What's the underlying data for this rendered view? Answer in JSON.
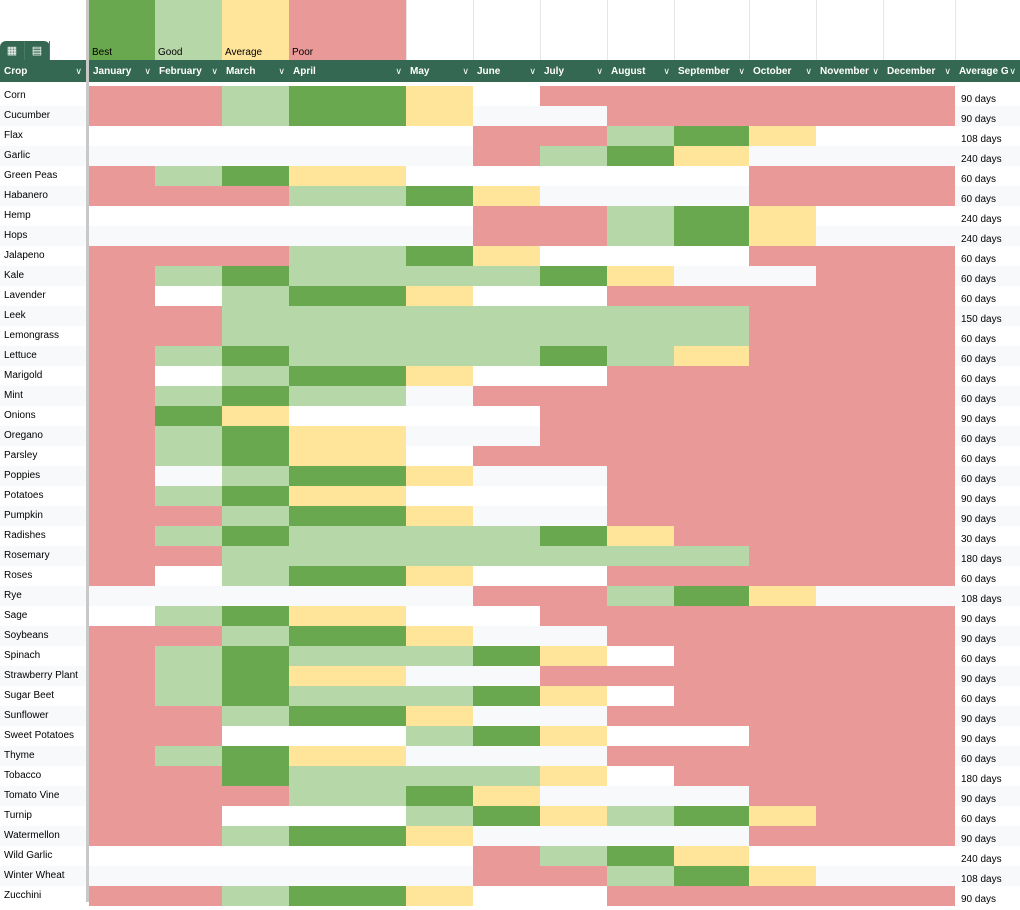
{
  "legend": [
    {
      "label": "Best",
      "color": "#6aa84f"
    },
    {
      "label": "Good",
      "color": "#b6d7a8"
    },
    {
      "label": "Average",
      "color": "#ffe599"
    },
    {
      "label": "Poor",
      "color": "#ea9999"
    }
  ],
  "toolbar": {
    "icons": [
      "table-view-icon",
      "calculator-icon"
    ]
  },
  "columns": [
    "Crop",
    "January",
    "February",
    "March",
    "April",
    "May",
    "June",
    "July",
    "August",
    "September",
    "October",
    "November",
    "December",
    "Average G"
  ],
  "rating_colors": {
    "B": "#6aa84f",
    "G": "#b6d7a8",
    "A": "#ffe599",
    "P": "#ea9999"
  },
  "rating_key": {
    "B": "Best",
    "G": "Good",
    "A": "Average",
    "P": "Poor",
    "_": "None"
  },
  "rows": [
    {
      "crop": "Corn",
      "months": "PPGBA_PPPPPP",
      "avg": "90 days"
    },
    {
      "crop": "Cucumber",
      "months": "PPGBA__PPPPP",
      "avg": "90 days"
    },
    {
      "crop": "Flax",
      "months": "_____PPGBA__",
      "avg": "108 days"
    },
    {
      "crop": "Garlic",
      "months": "_____PGBA___",
      "avg": "240 days"
    },
    {
      "crop": "Green Peas",
      "months": "PGBA_____PPP",
      "avg": "60 days"
    },
    {
      "crop": "Habanero",
      "months": "PPPGBA___PPP",
      "avg": "60 days"
    },
    {
      "crop": "Hemp",
      "months": "_____PPGBA__",
      "avg": "240 days"
    },
    {
      "crop": "Hops",
      "months": "_____PPGBA__",
      "avg": "240 days"
    },
    {
      "crop": "Jalapeno",
      "months": "PPPGBA___PPP",
      "avg": "60 days"
    },
    {
      "crop": "Kale",
      "months": "PGBGGGBA__PP",
      "avg": "60 days"
    },
    {
      "crop": "Lavender",
      "months": "P_GBA__PPPPP",
      "avg": "60 days"
    },
    {
      "crop": "Leek",
      "months": "PPGGGGGGGPPP",
      "avg": "150 days"
    },
    {
      "crop": "Lemongrass",
      "months": "PPGGGGGGGPPP",
      "avg": "60 days"
    },
    {
      "crop": "Lettuce",
      "months": "PGBGGGBGAPPP",
      "avg": "60 days"
    },
    {
      "crop": "Marigold",
      "months": "P_GBA__PPPPP",
      "avg": "60 days"
    },
    {
      "crop": "Mint",
      "months": "PGBG_PPPPPPP",
      "avg": "60 days"
    },
    {
      "crop": "Onions",
      "months": "PBA___PPPPPP",
      "avg": "90 days"
    },
    {
      "crop": "Oregano",
      "months": "PGBA__PPPPPP",
      "avg": "60 days"
    },
    {
      "crop": "Parsley",
      "months": "PGBA_PPPPPPP",
      "avg": "60 days"
    },
    {
      "crop": "Poppies",
      "months": "P_GBA__PPPPP",
      "avg": "60 days"
    },
    {
      "crop": "Potatoes",
      "months": "PGBA___PPPPP",
      "avg": "90 days"
    },
    {
      "crop": "Pumpkin",
      "months": "PPGBA__PPPPP",
      "avg": "90 days"
    },
    {
      "crop": "Radishes",
      "months": "PGBGGGBAPPPP",
      "avg": "30 days"
    },
    {
      "crop": "Rosemary",
      "months": "PPGGGGGGGPPP",
      "avg": "180 days"
    },
    {
      "crop": "Roses",
      "months": "P_GBA__PPPPP",
      "avg": "60 days"
    },
    {
      "crop": "Rye",
      "months": "_____PPGBA__",
      "avg": "108 days"
    },
    {
      "crop": "Sage",
      "months": "_GBA__PPPPPP",
      "avg": "90 days"
    },
    {
      "crop": "Soybeans",
      "months": "PPGBA__PPPPP",
      "avg": "90 days"
    },
    {
      "crop": "Spinach",
      "months": "PGBGGBA_PPPP",
      "avg": "60 days"
    },
    {
      "crop": "Strawberry Plant",
      "months": "PGBA__PPPPPP",
      "avg": "90 days"
    },
    {
      "crop": "Sugar Beet",
      "months": "PGBGGBA_PPPP",
      "avg": "60 days"
    },
    {
      "crop": "Sunflower",
      "months": "PPGBA__PPPPP",
      "avg": "90 days"
    },
    {
      "crop": "Sweet Potatoes",
      "months": "PP__GBA__PPP",
      "avg": "90 days"
    },
    {
      "crop": "Thyme",
      "months": "PGBA___PPPPP",
      "avg": "60 days"
    },
    {
      "crop": "Tobacco",
      "months": "PPBGGGA_PPPP",
      "avg": "180 days"
    },
    {
      "crop": "Tomato Vine",
      "months": "PPPGBA___PPP",
      "avg": "90 days"
    },
    {
      "crop": "Turnip",
      "months": "PP__GBAGBAPP",
      "avg": "60 days"
    },
    {
      "crop": "Watermellon",
      "months": "PPGBA____PPP",
      "avg": "90 days"
    },
    {
      "crop": "Wild Garlic",
      "months": "_____PGBA___",
      "avg": "240 days"
    },
    {
      "crop": "Winter Wheat",
      "months": "_____PPGBA__",
      "avg": "108 days"
    },
    {
      "crop": "Zucchini",
      "months": "PPGBA__PPPPP",
      "avg": "90 days"
    }
  ]
}
